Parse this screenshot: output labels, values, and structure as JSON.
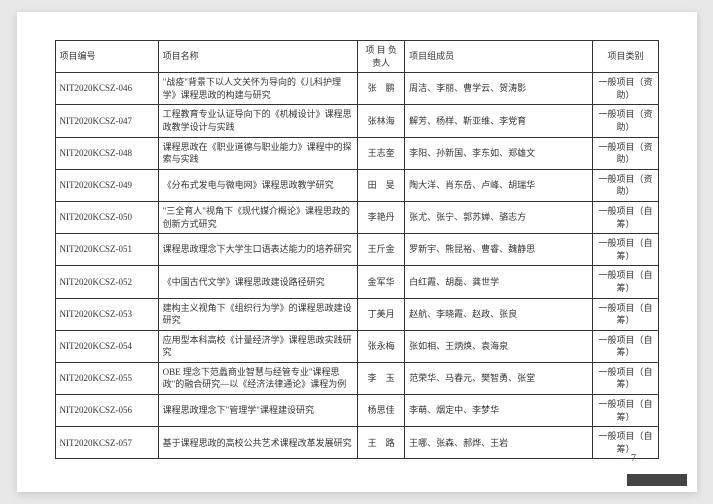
{
  "headers": {
    "id": "项目编号",
    "name": "项目名称",
    "leader": "项 目\n负责人",
    "members": "项目组成员",
    "type": "项目类别"
  },
  "rows": [
    {
      "id": "NIT2020KCSZ-046",
      "name": "\"战疫\"背景下以人文关怀为导向的《儿科护理学》课程思政的构建与研究",
      "leader": "张　鹏",
      "members": "周洁、李丽、曹学云、贺涛影",
      "type": "一般项目（资助）"
    },
    {
      "id": "NIT2020KCSZ-047",
      "name": "工程教育专业认证导向下的《机械设计》课程思政教学设计与实践",
      "leader": "张林海",
      "members": "解芳、杨样、靳亚维、李党育",
      "type": "一般项目（资助）"
    },
    {
      "id": "NIT2020KCSZ-048",
      "name": "课程思政在《职业道德与职业能力》课程中的探索与实践",
      "leader": "王志奎",
      "members": "李阳、孙新国、李东如、郑雄文",
      "type": "一般项目（资助）"
    },
    {
      "id": "NIT2020KCSZ-049",
      "name": "《分布式发电与微电网》课程思政教学研究",
      "leader": "田　旻",
      "members": "陶大洋、肖东岳、卢峰、胡瑞华",
      "type": "一般项目（资助）"
    },
    {
      "id": "NIT2020KCSZ-050",
      "name": "\"三全育人\"视角下《现代媒介概论》课程思政的创新方式研究",
      "leader": "李艳丹",
      "members": "张尤、张宁、郭苏婵、骆志方",
      "type": "一般项目（自筹）"
    },
    {
      "id": "NIT2020KCSZ-051",
      "name": "课程思政理念下大学生口语表达能力的培养研究",
      "leader": "王斤金",
      "members": "罗新宇、熊昆裕、曹睿、魏静思",
      "type": "一般项目（自筹）"
    },
    {
      "id": "NIT2020KCSZ-052",
      "name": "《中国古代文学》课程思政建设路径研究",
      "leader": "金军华",
      "members": "白红霞、胡磊、龚世学",
      "type": "一般项目（自筹）"
    },
    {
      "id": "NIT2020KCSZ-053",
      "name": "建构主义视角下《组织行为学》的课程思政建设研究",
      "leader": "丁美月",
      "members": "赵航、李晓霞、赵政、张良",
      "type": "一般项目（自筹）"
    },
    {
      "id": "NIT2020KCSZ-054",
      "name": "应用型本科高校《计量经济学》课程思政实践研究",
      "leader": "张永梅",
      "members": "张如相、王炳焕、袁海泉",
      "type": "一般项目（自筹）"
    },
    {
      "id": "NIT2020KCSZ-055",
      "name": "OBE 理念下范蠡商业智慧与经管专业\"课程思政\"的融合研究—以《经济法律通论》课程为例",
      "leader": "李　玉",
      "members": "范荣华、马春元、樊智勇、张堂",
      "type": "一般项目（自筹）"
    },
    {
      "id": "NIT2020KCSZ-056",
      "name": "课程思政理念下\"管理学\"课程建设研究",
      "leader": "杨思佳",
      "members": "李萌、烟定中、李梦华",
      "type": "一般项目（自筹）"
    },
    {
      "id": "NIT2020KCSZ-057",
      "name": "基于课程思政的高校公共艺术课程改革发展研究",
      "leader": "王　路",
      "members": "王哪、张森、郝烨、王岩",
      "type": "一般项目（自筹）"
    }
  ],
  "pageNumber": "— 7 —",
  "footerMark": ""
}
